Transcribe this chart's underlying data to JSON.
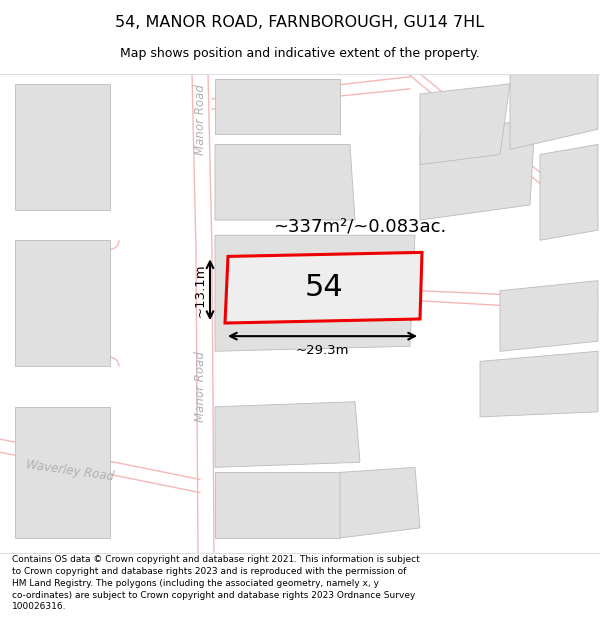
{
  "title": "54, MANOR ROAD, FARNBOROUGH, GU14 7HL",
  "subtitle": "Map shows position and indicative extent of the property.",
  "footer": "Contains OS data © Crown copyright and database right 2021. This information is subject\nto Crown copyright and database rights 2023 and is reproduced with the permission of\nHM Land Registry. The polygons (including the associated geometry, namely x, y\nco-ordinates) are subject to Crown copyright and database rights 2023 Ordnance Survey\n100026316.",
  "map_bg": "#f8f8f8",
  "building_fill": "#e0e0e0",
  "building_edge": "#c0c0c0",
  "road_color": "#f5b8b8",
  "highlight_fill": "#eeeeee",
  "highlight_edge": "#ee0000",
  "area_text": "~337m²/~0.083ac.",
  "number_text": "54",
  "width_label": "~29.3m",
  "height_label": "~13.1m",
  "road_label_upper": "Manor Road",
  "road_label_lower": "Manor Road",
  "road_label_waverley": "Waverley Road"
}
